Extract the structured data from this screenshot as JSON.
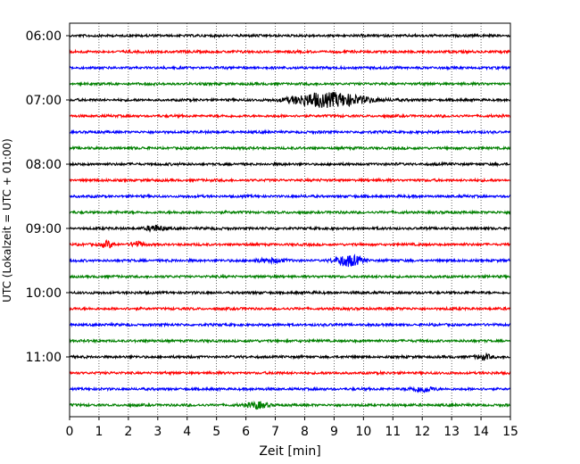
{
  "chart_data": {
    "type": "line",
    "title": "",
    "xlabel": "Zeit  [min]",
    "ylabel": "UTC (Lokalzeit = UTC + 01:00)",
    "xlim": [
      0,
      15
    ],
    "x_ticks": [
      "0",
      "1",
      "2",
      "3",
      "4",
      "5",
      "6",
      "7",
      "8",
      "9",
      "10",
      "11",
      "12",
      "13",
      "14",
      "15"
    ],
    "y_ticks": [
      "06:00",
      "07:00",
      "08:00",
      "09:00",
      "10:00",
      "11:00"
    ],
    "vertical_grid": true,
    "grid_style": "dotted",
    "trace_count": 24,
    "trace_colors": [
      "#000000",
      "#ff0000",
      "#0000ff",
      "#008000"
    ],
    "trace_minutes": 15,
    "first_trace_start": "06:00",
    "events": [
      {
        "trace": 4,
        "center_min": 9.0,
        "width_min": 1.2,
        "amplitude": 6.5
      },
      {
        "trace": 4,
        "center_min": 8.2,
        "width_min": 0.8,
        "amplitude": 2.5
      },
      {
        "trace": 12,
        "center_min": 2.9,
        "width_min": 0.3,
        "amplitude": 3.0
      },
      {
        "trace": 13,
        "center_min": 1.3,
        "width_min": 0.2,
        "amplitude": 3.5
      },
      {
        "trace": 13,
        "center_min": 2.3,
        "width_min": 0.2,
        "amplitude": 3.0
      },
      {
        "trace": 14,
        "center_min": 9.5,
        "width_min": 0.45,
        "amplitude": 6.0
      },
      {
        "trace": 14,
        "center_min": 6.8,
        "width_min": 0.5,
        "amplitude": 2.0
      },
      {
        "trace": 20,
        "center_min": 14.1,
        "width_min": 0.25,
        "amplitude": 3.0
      },
      {
        "trace": 22,
        "center_min": 12.0,
        "width_min": 0.4,
        "amplitude": 2.8
      },
      {
        "trace": 23,
        "center_min": 6.4,
        "width_min": 0.35,
        "amplitude": 3.5
      }
    ]
  }
}
